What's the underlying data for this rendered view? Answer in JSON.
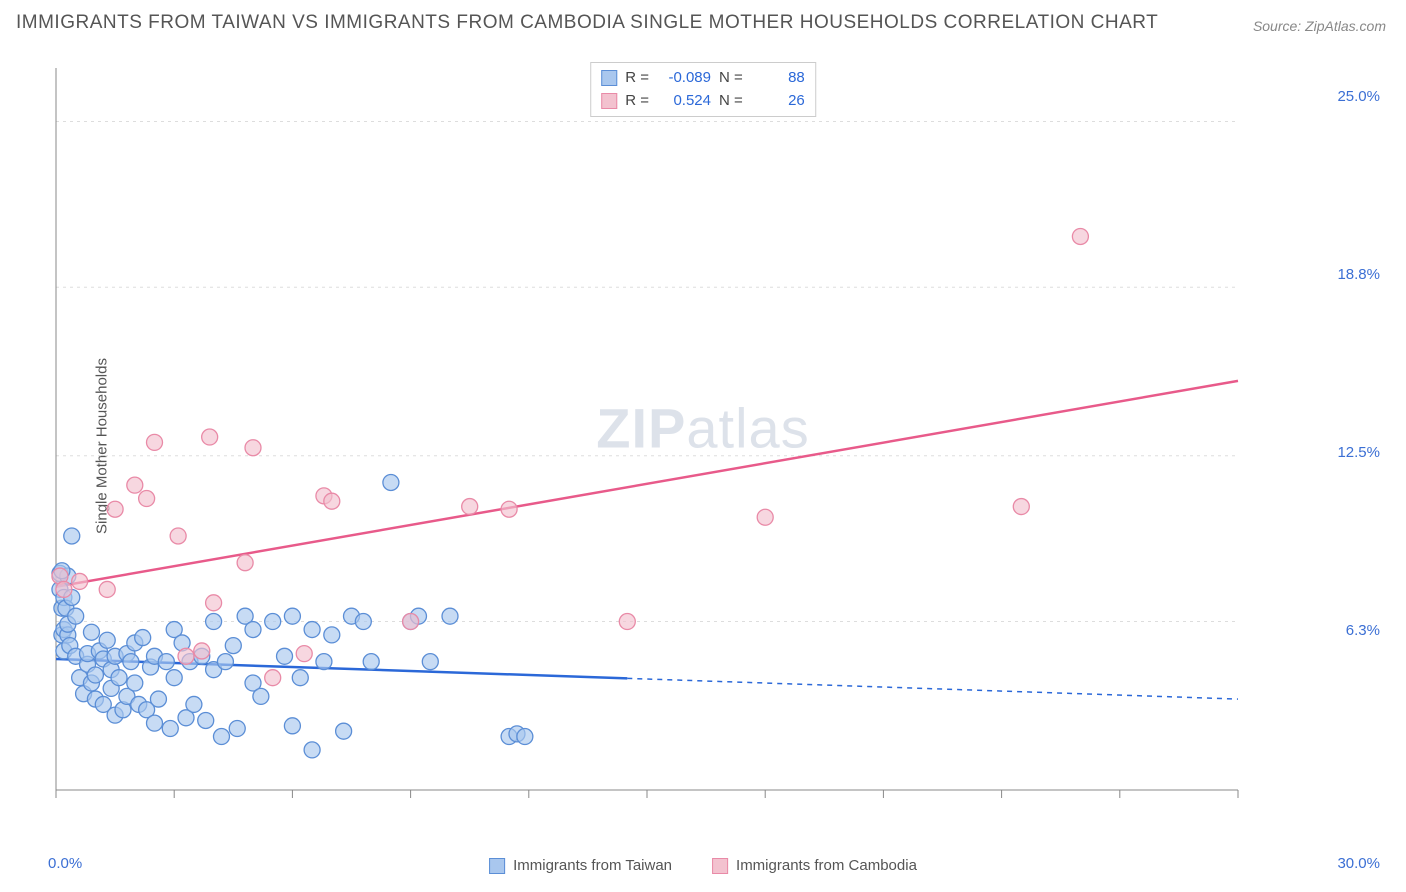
{
  "title": "IMMIGRANTS FROM TAIWAN VS IMMIGRANTS FROM CAMBODIA SINGLE MOTHER HOUSEHOLDS CORRELATION CHART",
  "source": "Source: ZipAtlas.com",
  "ylabel": "Single Mother Households",
  "watermark_a": "ZIP",
  "watermark_b": "atlas",
  "chart": {
    "type": "scatter",
    "xlim": [
      0,
      30
    ],
    "ylim": [
      0,
      27
    ],
    "x_tick_label_min": "0.0%",
    "x_tick_label_max": "30.0%",
    "y_ticks": [
      6.3,
      12.5,
      18.8,
      25.0
    ],
    "y_tick_labels": [
      "6.3%",
      "12.5%",
      "18.8%",
      "25.0%"
    ],
    "grid_color": "#dddddd",
    "background": "#ffffff",
    "axis_color": "#888888",
    "series": [
      {
        "name": "Immigrants from Taiwan",
        "color_fill": "#a9c7ee",
        "color_stroke": "#5b8ed6",
        "line_color": "#2b68d8",
        "R": "-0.089",
        "N": "88",
        "trend": {
          "x1": 0,
          "y1": 4.9,
          "x2": 30,
          "y2": 3.4,
          "solid_until_x": 14.5
        },
        "points": [
          [
            0.1,
            7.5
          ],
          [
            0.1,
            8.1
          ],
          [
            0.15,
            6.8
          ],
          [
            0.15,
            5.8
          ],
          [
            0.2,
            7.2
          ],
          [
            0.2,
            6.0
          ],
          [
            0.2,
            5.2
          ],
          [
            0.25,
            6.8
          ],
          [
            0.3,
            5.8
          ],
          [
            0.3,
            8.0
          ],
          [
            0.35,
            5.4
          ],
          [
            0.4,
            7.2
          ],
          [
            0.4,
            9.5
          ],
          [
            0.5,
            5.0
          ],
          [
            0.6,
            4.2
          ],
          [
            0.7,
            3.6
          ],
          [
            0.8,
            4.7
          ],
          [
            0.8,
            5.1
          ],
          [
            0.9,
            5.9
          ],
          [
            0.9,
            4.0
          ],
          [
            1.0,
            3.4
          ],
          [
            1.0,
            4.3
          ],
          [
            1.1,
            5.2
          ],
          [
            1.2,
            4.9
          ],
          [
            1.2,
            3.2
          ],
          [
            1.3,
            5.6
          ],
          [
            1.4,
            4.5
          ],
          [
            1.4,
            3.8
          ],
          [
            1.5,
            5.0
          ],
          [
            1.5,
            2.8
          ],
          [
            1.6,
            4.2
          ],
          [
            1.7,
            3.0
          ],
          [
            1.8,
            5.1
          ],
          [
            1.8,
            3.5
          ],
          [
            1.9,
            4.8
          ],
          [
            2.0,
            4.0
          ],
          [
            2.0,
            5.5
          ],
          [
            2.1,
            3.2
          ],
          [
            2.2,
            5.7
          ],
          [
            2.3,
            3.0
          ],
          [
            2.4,
            4.6
          ],
          [
            2.5,
            5.0
          ],
          [
            2.5,
            2.5
          ],
          [
            2.6,
            3.4
          ],
          [
            2.8,
            4.8
          ],
          [
            2.9,
            2.3
          ],
          [
            3.0,
            6.0
          ],
          [
            3.0,
            4.2
          ],
          [
            3.2,
            5.5
          ],
          [
            3.3,
            2.7
          ],
          [
            3.4,
            4.8
          ],
          [
            3.5,
            3.2
          ],
          [
            3.7,
            5.0
          ],
          [
            3.8,
            2.6
          ],
          [
            4.0,
            6.3
          ],
          [
            4.0,
            4.5
          ],
          [
            4.2,
            2.0
          ],
          [
            4.3,
            4.8
          ],
          [
            4.5,
            5.4
          ],
          [
            4.6,
            2.3
          ],
          [
            4.8,
            6.5
          ],
          [
            5.0,
            4.0
          ],
          [
            5.0,
            6.0
          ],
          [
            5.2,
            3.5
          ],
          [
            5.5,
            6.3
          ],
          [
            5.8,
            5.0
          ],
          [
            6.0,
            6.5
          ],
          [
            6.0,
            2.4
          ],
          [
            6.2,
            4.2
          ],
          [
            6.5,
            6.0
          ],
          [
            6.5,
            1.5
          ],
          [
            6.8,
            4.8
          ],
          [
            7.0,
            5.8
          ],
          [
            7.3,
            2.2
          ],
          [
            7.5,
            6.5
          ],
          [
            7.8,
            6.3
          ],
          [
            8.0,
            4.8
          ],
          [
            8.5,
            11.5
          ],
          [
            9.0,
            6.3
          ],
          [
            9.2,
            6.5
          ],
          [
            9.5,
            4.8
          ],
          [
            10.0,
            6.5
          ],
          [
            11.5,
            2.0
          ],
          [
            11.7,
            2.1
          ],
          [
            11.9,
            2.0
          ],
          [
            0.15,
            8.2
          ],
          [
            0.3,
            6.2
          ],
          [
            0.5,
            6.5
          ]
        ]
      },
      {
        "name": "Immigrants from Cambodia",
        "color_fill": "#f3c2cf",
        "color_stroke": "#e98aa7",
        "line_color": "#e85a8a",
        "R": "0.524",
        "N": "26",
        "trend": {
          "x1": 0,
          "y1": 7.6,
          "x2": 30,
          "y2": 15.3,
          "solid_until_x": 30
        },
        "points": [
          [
            0.1,
            8.0
          ],
          [
            0.2,
            7.5
          ],
          [
            0.6,
            7.8
          ],
          [
            1.3,
            7.5
          ],
          [
            1.5,
            10.5
          ],
          [
            2.0,
            11.4
          ],
          [
            2.3,
            10.9
          ],
          [
            2.5,
            13.0
          ],
          [
            3.1,
            9.5
          ],
          [
            3.3,
            5.0
          ],
          [
            3.7,
            5.2
          ],
          [
            3.9,
            13.2
          ],
          [
            4.0,
            7.0
          ],
          [
            4.8,
            8.5
          ],
          [
            5.0,
            12.8
          ],
          [
            5.5,
            4.2
          ],
          [
            6.3,
            5.1
          ],
          [
            6.8,
            11.0
          ],
          [
            7.0,
            10.8
          ],
          [
            9.0,
            6.3
          ],
          [
            10.5,
            10.6
          ],
          [
            11.5,
            10.5
          ],
          [
            18.0,
            10.2
          ],
          [
            24.5,
            10.6
          ],
          [
            26.0,
            20.7
          ],
          [
            14.5,
            6.3
          ]
        ]
      }
    ]
  },
  "legend": {
    "series1_label": "Immigrants from Taiwan",
    "series2_label": "Immigrants from Cambodia"
  }
}
